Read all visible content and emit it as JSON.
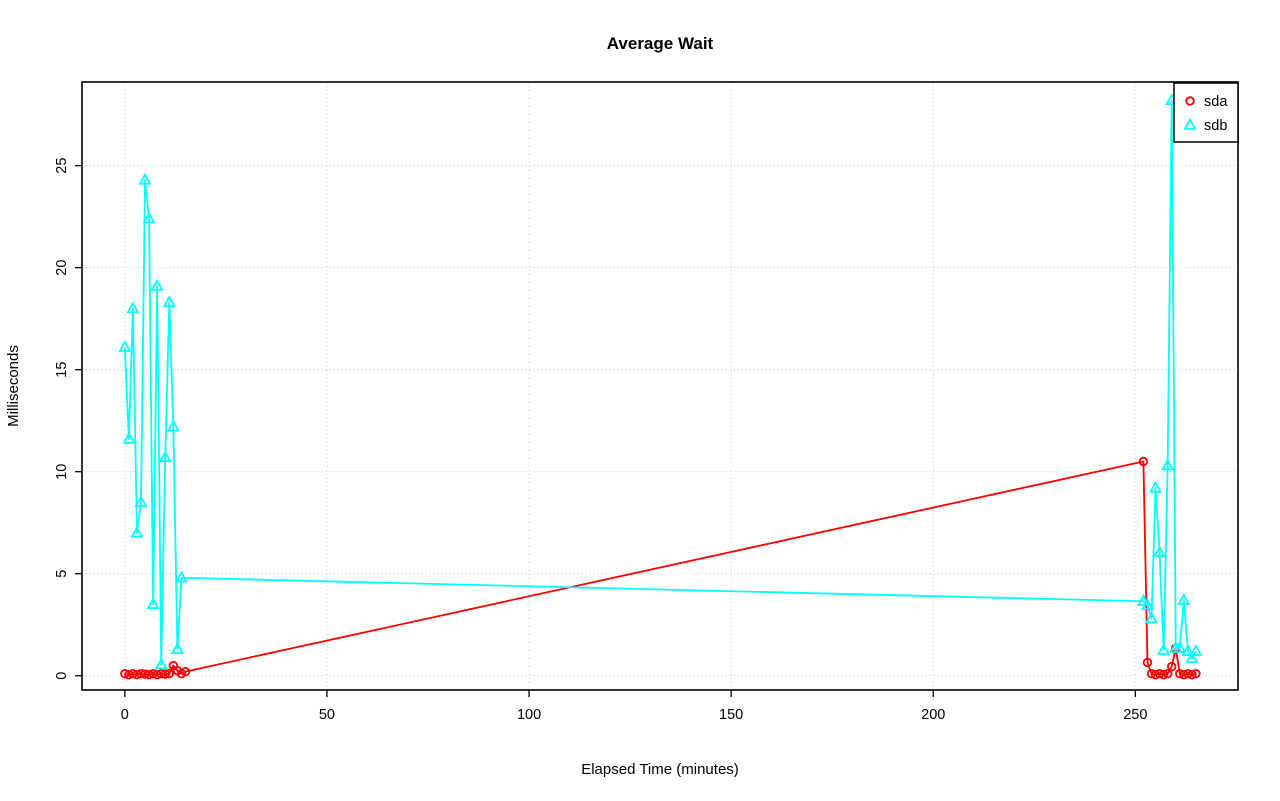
{
  "page": {
    "background": "#FFFFFF"
  },
  "chart_data": {
    "type": "line",
    "title": "Average Wait",
    "xlabel": "Elapsed Time (minutes)",
    "ylabel": "Milliseconds",
    "xlim": [
      -10.6,
      275.4
    ],
    "ylim": [
      -0.7,
      29.1
    ],
    "xticks": [
      0,
      50,
      100,
      150,
      200,
      250
    ],
    "yticks": [
      0,
      5,
      10,
      15,
      20,
      25
    ],
    "grid": true,
    "grid_color": "#C6C6C6",
    "grid_style": "dotted",
    "axis_color": "#000000",
    "legend_position": "top-right",
    "legend_labels": [
      "sda",
      "sdb"
    ],
    "series": [
      {
        "name": "sda",
        "color": "#FF0000",
        "marker": "circle",
        "points": [
          [
            0,
            0.1
          ],
          [
            1,
            0.05
          ],
          [
            2,
            0.1
          ],
          [
            3,
            0.05
          ],
          [
            4,
            0.1
          ],
          [
            5,
            0.08
          ],
          [
            6,
            0.05
          ],
          [
            7,
            0.1
          ],
          [
            8,
            0.05
          ],
          [
            9,
            0.1
          ],
          [
            10,
            0.08
          ],
          [
            11,
            0.1
          ],
          [
            12,
            0.5
          ],
          [
            13,
            0.25
          ],
          [
            14,
            0.1
          ],
          [
            15,
            0.2
          ],
          [
            252,
            10.5
          ],
          [
            253,
            0.65
          ],
          [
            254,
            0.1
          ],
          [
            255,
            0.05
          ],
          [
            256,
            0.1
          ],
          [
            257,
            0.05
          ],
          [
            258,
            0.1
          ],
          [
            259,
            0.45
          ],
          [
            260,
            1.35
          ],
          [
            261,
            0.1
          ],
          [
            262,
            0.05
          ],
          [
            263,
            0.1
          ],
          [
            264,
            0.05
          ],
          [
            265,
            0.1
          ]
        ]
      },
      {
        "name": "sdb",
        "color": "#00FFFF",
        "marker": "triangle",
        "points": [
          [
            0,
            16.1
          ],
          [
            1,
            11.6
          ],
          [
            2,
            18.0
          ],
          [
            3,
            7.0
          ],
          [
            4,
            8.5
          ],
          [
            5,
            24.3
          ],
          [
            6,
            22.4
          ],
          [
            7,
            3.5
          ],
          [
            8,
            19.1
          ],
          [
            9,
            0.55
          ],
          [
            10,
            10.7
          ],
          [
            11,
            18.3
          ],
          [
            12,
            12.2
          ],
          [
            13,
            1.3
          ],
          [
            14,
            4.8
          ],
          [
            252,
            3.65
          ],
          [
            253,
            3.45
          ],
          [
            254,
            2.8
          ],
          [
            255,
            9.2
          ],
          [
            256,
            6.05
          ],
          [
            257,
            1.25
          ],
          [
            258,
            10.3
          ],
          [
            259,
            28.2
          ],
          [
            260,
            1.35
          ],
          [
            261,
            1.35
          ],
          [
            262,
            3.7
          ],
          [
            263,
            1.2
          ],
          [
            264,
            0.85
          ],
          [
            265,
            1.2
          ]
        ]
      }
    ]
  }
}
